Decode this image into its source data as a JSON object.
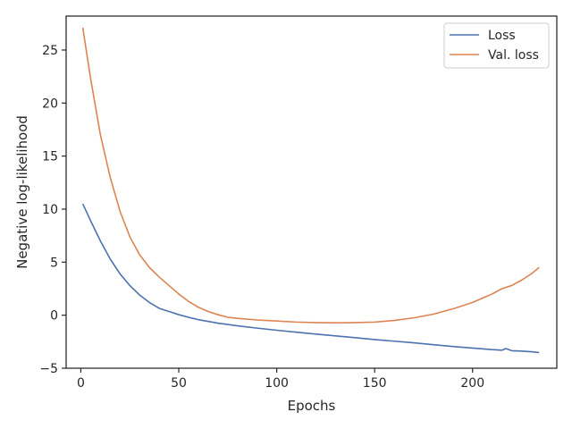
{
  "chart_data": {
    "type": "line",
    "title": "",
    "xlabel": "Epochs",
    "ylabel": "Negative log-likelihood",
    "xlim": [
      -7.5,
      243
    ],
    "ylim": [
      -5,
      28.2
    ],
    "xticks": [
      0,
      50,
      100,
      150,
      200
    ],
    "yticks": [
      -5,
      0,
      5,
      10,
      15,
      20,
      25
    ],
    "xtick_labels": [
      "0",
      "50",
      "100",
      "150",
      "200"
    ],
    "ytick_labels": [
      "−5",
      "0",
      "5",
      "10",
      "15",
      "20",
      "25"
    ],
    "grid": false,
    "legend_position": "top-right",
    "series": [
      {
        "name": "Loss",
        "color": "#4c72b0",
        "points": [
          [
            1,
            10.5
          ],
          [
            5,
            8.9
          ],
          [
            10,
            7.0
          ],
          [
            15,
            5.3
          ],
          [
            20,
            3.9
          ],
          [
            25,
            2.8
          ],
          [
            30,
            1.9
          ],
          [
            35,
            1.2
          ],
          [
            40,
            0.65
          ],
          [
            45,
            0.35
          ],
          [
            50,
            0.05
          ],
          [
            55,
            -0.2
          ],
          [
            60,
            -0.42
          ],
          [
            70,
            -0.75
          ],
          [
            80,
            -1.0
          ],
          [
            90,
            -1.22
          ],
          [
            100,
            -1.42
          ],
          [
            110,
            -1.6
          ],
          [
            120,
            -1.78
          ],
          [
            130,
            -1.95
          ],
          [
            140,
            -2.12
          ],
          [
            150,
            -2.3
          ],
          [
            160,
            -2.45
          ],
          [
            170,
            -2.6
          ],
          [
            180,
            -2.78
          ],
          [
            190,
            -2.95
          ],
          [
            200,
            -3.1
          ],
          [
            210,
            -3.25
          ],
          [
            215,
            -3.3
          ],
          [
            217,
            -3.15
          ],
          [
            220,
            -3.35
          ],
          [
            225,
            -3.38
          ],
          [
            230,
            -3.45
          ],
          [
            234,
            -3.52
          ]
        ]
      },
      {
        "name": "Val. loss",
        "color": "#dd8452",
        "points": [
          [
            1,
            27.1
          ],
          [
            5,
            22.3
          ],
          [
            10,
            17.0
          ],
          [
            15,
            13.0
          ],
          [
            20,
            9.8
          ],
          [
            25,
            7.4
          ],
          [
            30,
            5.7
          ],
          [
            35,
            4.5
          ],
          [
            40,
            3.6
          ],
          [
            45,
            2.8
          ],
          [
            50,
            2.0
          ],
          [
            55,
            1.3
          ],
          [
            60,
            0.75
          ],
          [
            65,
            0.35
          ],
          [
            70,
            0.05
          ],
          [
            75,
            -0.2
          ],
          [
            80,
            -0.3
          ],
          [
            90,
            -0.45
          ],
          [
            100,
            -0.55
          ],
          [
            110,
            -0.65
          ],
          [
            120,
            -0.7
          ],
          [
            130,
            -0.72
          ],
          [
            140,
            -0.7
          ],
          [
            150,
            -0.65
          ],
          [
            160,
            -0.5
          ],
          [
            170,
            -0.25
          ],
          [
            180,
            0.1
          ],
          [
            190,
            0.6
          ],
          [
            200,
            1.2
          ],
          [
            205,
            1.6
          ],
          [
            210,
            2.0
          ],
          [
            215,
            2.5
          ],
          [
            220,
            2.8
          ],
          [
            225,
            3.3
          ],
          [
            230,
            3.9
          ],
          [
            234,
            4.5
          ]
        ]
      }
    ]
  }
}
